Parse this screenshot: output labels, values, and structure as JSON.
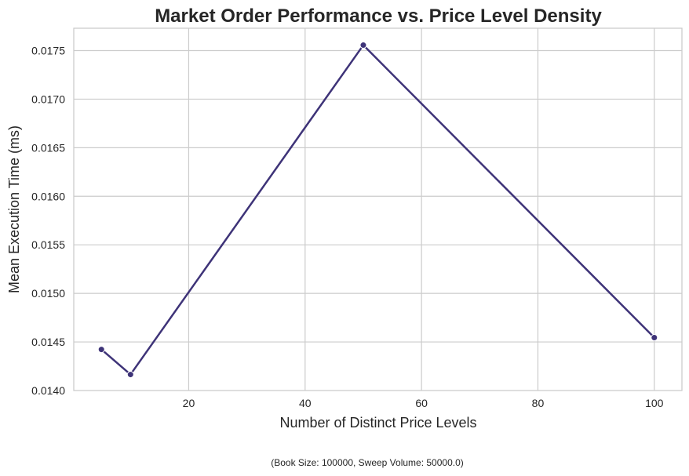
{
  "chart_data": {
    "type": "line",
    "title": "Market Order Performance vs. Price Level Density",
    "xlabel": "Number of Distinct Price Levels",
    "ylabel": "Mean Execution Time (ms)",
    "caption": "(Book Size: 100000, Sweep Volume: 50000.0)",
    "xlim": [
      0.25,
      104.75
    ],
    "ylim": [
      0.014,
      0.01773
    ],
    "xticks": [
      20,
      40,
      60,
      80,
      100
    ],
    "xtick_labels": [
      "20",
      "40",
      "60",
      "80",
      "100"
    ],
    "yticks": [
      0.014,
      0.0145,
      0.015,
      0.0155,
      0.016,
      0.0165,
      0.017,
      0.0175
    ],
    "ytick_labels": [
      "0.0140",
      "0.0145",
      "0.0150",
      "0.0155",
      "0.0160",
      "0.0165",
      "0.0170",
      "0.0175"
    ],
    "grid": true,
    "series": [
      {
        "x": [
          5,
          10,
          50,
          100
        ],
        "values": [
          0.014423,
          0.014165,
          0.017556,
          0.014545
        ],
        "color": "#3e3378",
        "marker": "circle"
      }
    ]
  }
}
